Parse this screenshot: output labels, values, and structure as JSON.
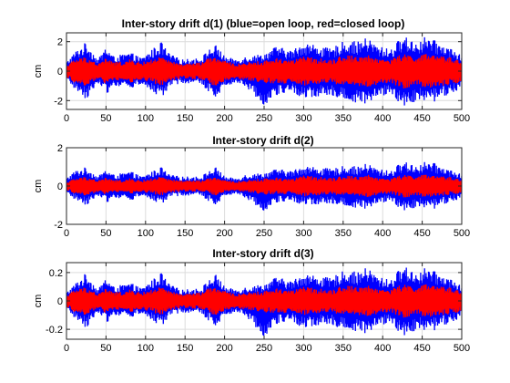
{
  "figure": {
    "background": "#ffffff"
  },
  "colors": {
    "open_loop": "#0000ff",
    "closed_loop": "#ff0000",
    "grid": "#dcdcdc",
    "axis": "#262626"
  },
  "chart_data": [
    {
      "type": "area",
      "title": "Inter-story drift d(1) (blue=open loop, red=closed loop)",
      "xlabel": "",
      "ylabel": "cm",
      "xlim": [
        0,
        500
      ],
      "ylim": [
        -2.6,
        2.6
      ],
      "xticks": [
        0,
        50,
        100,
        150,
        200,
        250,
        300,
        350,
        400,
        450,
        500
      ],
      "yticks": [
        -2,
        0,
        2
      ],
      "grid": true,
      "series": [
        {
          "color": "#0000ff",
          "envelope": {
            "x": [
              0,
              10,
              25,
              40,
              50,
              60,
              75,
              80,
              95,
              120,
              130,
              145,
              170,
              180,
              190,
              200,
              215,
              225,
              250,
              265,
              285,
              300,
              315,
              335,
              345,
              355,
              370,
              380,
              395,
              410,
              425,
              445,
              455,
              465,
              490,
              500
            ],
            "upper": [
              0.6,
              1.3,
              2.0,
              0.8,
              1.7,
              1.0,
              1.2,
              1.3,
              0.9,
              2.0,
              1.2,
              0.8,
              0.9,
              1.5,
              1.8,
              1.0,
              0.8,
              1.0,
              1.2,
              1.7,
              1.4,
              2.0,
              1.8,
              1.5,
              1.9,
              2.1,
              2.0,
              2.3,
              1.7,
              1.5,
              2.4,
              2.0,
              2.4,
              2.1,
              1.5,
              1.0
            ],
            "lower": [
              -0.6,
              -1.2,
              -1.9,
              -0.8,
              -1.6,
              -1.0,
              -1.1,
              -1.2,
              -0.9,
              -1.9,
              -1.1,
              -0.8,
              -0.9,
              -1.4,
              -1.8,
              -1.0,
              -0.8,
              -1.0,
              -2.3,
              -1.7,
              -1.4,
              -1.9,
              -1.8,
              -1.6,
              -1.9,
              -2.2,
              -2.1,
              -2.4,
              -1.7,
              -1.6,
              -2.4,
              -2.0,
              -2.3,
              -2.1,
              -1.5,
              -1.0
            ]
          }
        },
        {
          "color": "#ff0000",
          "envelope": {
            "x": [
              0,
              10,
              25,
              40,
              50,
              60,
              75,
              80,
              95,
              120,
              130,
              145,
              170,
              180,
              190,
              200,
              215,
              225,
              250,
              265,
              285,
              300,
              315,
              335,
              345,
              355,
              370,
              380,
              395,
              410,
              425,
              445,
              455,
              465,
              490,
              500
            ],
            "upper": [
              0.4,
              0.8,
              1.0,
              0.5,
              0.9,
              0.6,
              0.7,
              0.8,
              0.6,
              1.0,
              0.7,
              0.5,
              0.6,
              0.9,
              1.0,
              0.7,
              0.5,
              0.6,
              0.7,
              0.9,
              0.8,
              1.0,
              0.9,
              0.8,
              1.0,
              1.1,
              1.0,
              1.1,
              0.9,
              0.8,
              1.2,
              1.0,
              1.2,
              1.1,
              0.9,
              0.7
            ],
            "lower": [
              -0.4,
              -0.8,
              -1.0,
              -0.5,
              -0.9,
              -0.6,
              -0.7,
              -0.8,
              -0.6,
              -1.0,
              -0.7,
              -0.5,
              -0.6,
              -0.9,
              -1.0,
              -0.7,
              -0.5,
              -0.6,
              -0.8,
              -0.9,
              -0.8,
              -1.0,
              -0.9,
              -0.8,
              -1.0,
              -1.1,
              -1.0,
              -1.1,
              -0.9,
              -0.8,
              -1.2,
              -1.0,
              -1.2,
              -1.1,
              -0.9,
              -0.7
            ]
          }
        }
      ]
    },
    {
      "type": "area",
      "title": "Inter-story drift d(2)",
      "xlabel": "",
      "ylabel": "cm",
      "xlim": [
        0,
        500
      ],
      "ylim": [
        -2,
        2
      ],
      "xticks": [
        0,
        50,
        100,
        150,
        200,
        250,
        300,
        350,
        400,
        450,
        500
      ],
      "yticks": [
        -2,
        0,
        2
      ],
      "grid": true,
      "series": [
        {
          "color": "#0000ff",
          "envelope": {
            "x": [
              0,
              10,
              25,
              40,
              50,
              60,
              75,
              80,
              95,
              120,
              130,
              145,
              170,
              180,
              190,
              200,
              215,
              225,
              250,
              265,
              285,
              300,
              315,
              335,
              345,
              355,
              370,
              380,
              395,
              410,
              425,
              445,
              455,
              465,
              490,
              500
            ],
            "upper": [
              0.4,
              0.8,
              1.0,
              0.5,
              0.9,
              0.6,
              0.7,
              0.8,
              0.5,
              1.0,
              0.6,
              0.5,
              0.5,
              0.8,
              1.0,
              0.5,
              0.4,
              0.6,
              0.7,
              0.9,
              0.8,
              1.1,
              1.0,
              0.9,
              1.0,
              1.1,
              1.0,
              1.2,
              0.9,
              0.8,
              1.3,
              1.1,
              1.3,
              1.2,
              0.8,
              0.6
            ],
            "lower": [
              -0.4,
              -0.7,
              -1.0,
              -0.5,
              -0.9,
              -0.6,
              -0.7,
              -0.8,
              -0.5,
              -1.0,
              -0.6,
              -0.5,
              -0.5,
              -0.8,
              -1.0,
              -0.5,
              -0.4,
              -0.6,
              -1.3,
              -0.9,
              -0.8,
              -1.0,
              -1.0,
              -0.9,
              -1.0,
              -1.2,
              -1.1,
              -1.3,
              -0.9,
              -0.8,
              -1.3,
              -1.1,
              -1.3,
              -1.2,
              -0.8,
              -0.6
            ]
          }
        },
        {
          "color": "#ff0000",
          "envelope": {
            "x": [
              0,
              10,
              25,
              40,
              50,
              60,
              75,
              80,
              95,
              120,
              130,
              145,
              170,
              180,
              190,
              200,
              215,
              225,
              250,
              265,
              285,
              300,
              315,
              335,
              345,
              355,
              370,
              380,
              395,
              410,
              425,
              445,
              455,
              465,
              490,
              500
            ],
            "upper": [
              0.2,
              0.4,
              0.5,
              0.3,
              0.45,
              0.3,
              0.35,
              0.4,
              0.3,
              0.5,
              0.35,
              0.3,
              0.3,
              0.4,
              0.5,
              0.3,
              0.25,
              0.3,
              0.4,
              0.45,
              0.4,
              0.55,
              0.5,
              0.45,
              0.5,
              0.55,
              0.5,
              0.6,
              0.45,
              0.4,
              0.6,
              0.55,
              0.6,
              0.55,
              0.45,
              0.35
            ],
            "lower": [
              -0.2,
              -0.4,
              -0.5,
              -0.3,
              -0.45,
              -0.3,
              -0.35,
              -0.4,
              -0.3,
              -0.5,
              -0.35,
              -0.3,
              -0.3,
              -0.4,
              -0.5,
              -0.3,
              -0.25,
              -0.3,
              -0.45,
              -0.45,
              -0.4,
              -0.55,
              -0.5,
              -0.45,
              -0.5,
              -0.55,
              -0.5,
              -0.6,
              -0.45,
              -0.4,
              -0.6,
              -0.55,
              -0.6,
              -0.55,
              -0.45,
              -0.35
            ]
          }
        }
      ]
    },
    {
      "type": "area",
      "title": "Inter-story drift d(3)",
      "xlabel": "",
      "ylabel": "cm",
      "xlim": [
        0,
        500
      ],
      "ylim": [
        -0.27,
        0.27
      ],
      "xticks": [
        0,
        50,
        100,
        150,
        200,
        250,
        300,
        350,
        400,
        450,
        500
      ],
      "yticks": [
        -0.2,
        0,
        0.2
      ],
      "yticklabels": [
        "-0.2",
        "0",
        "0.2"
      ],
      "grid": true,
      "series": [
        {
          "color": "#0000ff",
          "envelope": {
            "x": [
              0,
              10,
              25,
              40,
              50,
              60,
              75,
              80,
              95,
              120,
              130,
              145,
              170,
              180,
              190,
              200,
              215,
              225,
              250,
              265,
              285,
              300,
              315,
              335,
              345,
              355,
              370,
              380,
              395,
              410,
              425,
              445,
              455,
              465,
              490,
              500
            ],
            "upper": [
              0.06,
              0.12,
              0.2,
              0.08,
              0.17,
              0.1,
              0.12,
              0.13,
              0.09,
              0.2,
              0.12,
              0.08,
              0.09,
              0.15,
              0.19,
              0.1,
              0.08,
              0.1,
              0.12,
              0.17,
              0.14,
              0.2,
              0.18,
              0.16,
              0.2,
              0.22,
              0.2,
              0.24,
              0.17,
              0.15,
              0.25,
              0.2,
              0.24,
              0.21,
              0.15,
              0.1
            ],
            "lower": [
              -0.06,
              -0.12,
              -0.19,
              -0.08,
              -0.16,
              -0.1,
              -0.11,
              -0.12,
              -0.09,
              -0.19,
              -0.11,
              -0.08,
              -0.09,
              -0.14,
              -0.18,
              -0.1,
              -0.08,
              -0.1,
              -0.25,
              -0.17,
              -0.14,
              -0.2,
              -0.18,
              -0.16,
              -0.2,
              -0.22,
              -0.21,
              -0.25,
              -0.17,
              -0.16,
              -0.25,
              -0.2,
              -0.24,
              -0.21,
              -0.15,
              -0.1
            ]
          }
        },
        {
          "color": "#ff0000",
          "envelope": {
            "x": [
              0,
              10,
              25,
              40,
              50,
              60,
              75,
              80,
              95,
              120,
              130,
              145,
              170,
              180,
              190,
              200,
              215,
              225,
              250,
              265,
              285,
              300,
              315,
              335,
              345,
              355,
              370,
              380,
              395,
              410,
              425,
              445,
              455,
              465,
              490,
              500
            ],
            "upper": [
              0.04,
              0.08,
              0.1,
              0.05,
              0.09,
              0.06,
              0.07,
              0.08,
              0.06,
              0.1,
              0.07,
              0.05,
              0.06,
              0.09,
              0.1,
              0.07,
              0.05,
              0.06,
              0.07,
              0.09,
              0.08,
              0.1,
              0.09,
              0.08,
              0.1,
              0.11,
              0.1,
              0.11,
              0.09,
              0.08,
              0.12,
              0.1,
              0.12,
              0.11,
              0.09,
              0.07
            ],
            "lower": [
              -0.04,
              -0.08,
              -0.1,
              -0.05,
              -0.09,
              -0.06,
              -0.07,
              -0.08,
              -0.06,
              -0.1,
              -0.07,
              -0.05,
              -0.06,
              -0.09,
              -0.1,
              -0.07,
              -0.05,
              -0.06,
              -0.08,
              -0.09,
              -0.08,
              -0.1,
              -0.09,
              -0.08,
              -0.1,
              -0.11,
              -0.1,
              -0.11,
              -0.09,
              -0.08,
              -0.12,
              -0.1,
              -0.12,
              -0.11,
              -0.09,
              -0.07
            ]
          }
        }
      ]
    }
  ]
}
